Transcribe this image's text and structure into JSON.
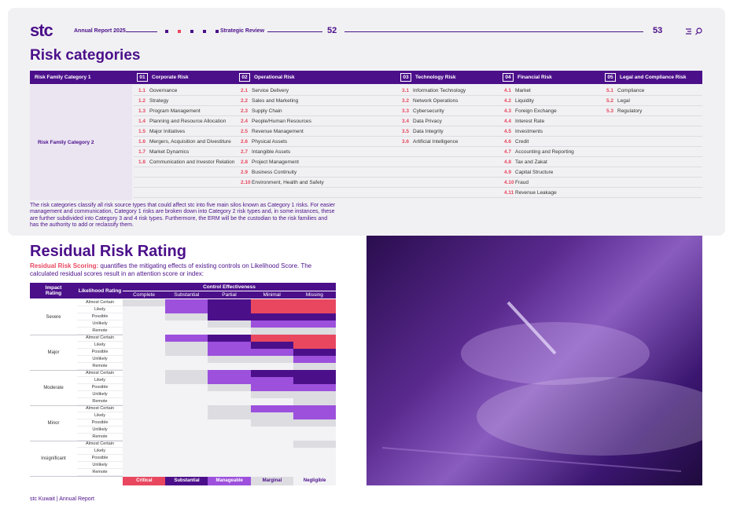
{
  "header": {
    "logo": "stc",
    "report": "Annual Report 2025",
    "section": "Strategic Review",
    "page_left": "52",
    "page_right": "53"
  },
  "risk_categories": {
    "title": "Risk categories",
    "row_label_1": "Risk Family Category 1",
    "row_label_2": "Risk Family Category 2",
    "families": [
      {
        "number": "01",
        "name": "Corporate Risk",
        "items": [
          {
            "code": "1.1",
            "name": "Governance"
          },
          {
            "code": "1.2",
            "name": "Strategy"
          },
          {
            "code": "1.3",
            "name": "Program Management"
          },
          {
            "code": "1.4",
            "name": "Planning and Resource Allocation"
          },
          {
            "code": "1.5",
            "name": "Major Initiatives"
          },
          {
            "code": "1.6",
            "name": "Mergers, Acquisition and Divestiture"
          },
          {
            "code": "1.7",
            "name": "Market Dynamics"
          },
          {
            "code": "1.8",
            "name": "Communication and Investor Relations"
          }
        ]
      },
      {
        "number": "02",
        "name": "Operational Risk",
        "items": [
          {
            "code": "2.1",
            "name": "Service Delivery"
          },
          {
            "code": "2.2",
            "name": "Sales and Marketing"
          },
          {
            "code": "2.3",
            "name": "Supply Chain"
          },
          {
            "code": "2.4",
            "name": "People/Human Resources"
          },
          {
            "code": "2.5",
            "name": "Revenue Management"
          },
          {
            "code": "2.6",
            "name": "Physical Assets"
          },
          {
            "code": "2.7",
            "name": "Intangible Assets"
          },
          {
            "code": "2.8",
            "name": "Project Management"
          },
          {
            "code": "2.9",
            "name": "Business Continuity"
          },
          {
            "code": "2.10",
            "name": "Environment, Health and Safety"
          }
        ]
      },
      {
        "number": "03",
        "name": "Technology Risk",
        "items": [
          {
            "code": "3.1",
            "name": "Information Technology"
          },
          {
            "code": "3.2",
            "name": "Network Operations"
          },
          {
            "code": "3.3",
            "name": "Cybersecurity"
          },
          {
            "code": "3.4",
            "name": "Data Privacy"
          },
          {
            "code": "3.5",
            "name": "Data Integrity"
          },
          {
            "code": "3.6",
            "name": "Artificial Intelligence"
          }
        ]
      },
      {
        "number": "04",
        "name": "Financial Risk",
        "items": [
          {
            "code": "4.1",
            "name": "Market"
          },
          {
            "code": "4.2",
            "name": "Liquidity"
          },
          {
            "code": "4.3",
            "name": "Foreign Exchange"
          },
          {
            "code": "4.4",
            "name": "Interest Rate"
          },
          {
            "code": "4.5",
            "name": "Investments"
          },
          {
            "code": "4.6",
            "name": "Credit"
          },
          {
            "code": "4.7",
            "name": "Accounting and Reporting"
          },
          {
            "code": "4.8",
            "name": "Tax and Zakat"
          },
          {
            "code": "4.9",
            "name": "Capital Structure"
          },
          {
            "code": "4.10",
            "name": "Fraud"
          },
          {
            "code": "4.11",
            "name": "Revenue Leakage"
          }
        ]
      },
      {
        "number": "05",
        "name": "Legal and Compliance Risk",
        "items": [
          {
            "code": "5.1",
            "name": "Compliance"
          },
          {
            "code": "5.2",
            "name": "Legal"
          },
          {
            "code": "5.3",
            "name": "Regulatory"
          }
        ]
      }
    ],
    "description": "The risk categories classify all risk source types that could affect stc into five main silos known as Category 1 risks. For easier management and communication, Category 1 risks are broken down into Category 2 risk types and, in some instances, these are further subdivided into Category 3 and 4 risk types. Furthermore, the ERM will be the custodian to the risk families and has the authority to add or reclassify them."
  },
  "residual": {
    "title": "Residual Risk Rating",
    "intro_label": "Residual Risk Scoring:",
    "intro_text": "quantifies the mitigating effects of existing controls on Likelihood Score. The calculated residual scores result in an attention score or index:",
    "impact_header": "Impact Rating",
    "likelihood_header": "Likelihood Rating",
    "control_header": "Control Effectiveness",
    "controls": [
      "Complete",
      "Substantial",
      "Partial",
      "Minimal",
      "Missing"
    ],
    "likelihoods": [
      "Almost Certain",
      "Likely",
      "Possible",
      "Unlikely",
      "Remote"
    ],
    "impacts": [
      {
        "name": "Severe",
        "cells": [
          [
            3,
            2,
            1,
            0,
            0
          ],
          [
            4,
            2,
            1,
            0,
            0
          ],
          [
            4,
            3,
            1,
            1,
            1
          ],
          [
            4,
            4,
            3,
            2,
            2
          ],
          [
            4,
            4,
            4,
            3,
            3
          ]
        ]
      },
      {
        "name": "Major",
        "cells": [
          [
            4,
            2,
            1,
            0,
            0
          ],
          [
            4,
            3,
            2,
            1,
            0
          ],
          [
            4,
            3,
            2,
            2,
            1
          ],
          [
            4,
            4,
            3,
            3,
            2
          ],
          [
            4,
            4,
            4,
            4,
            3
          ]
        ]
      },
      {
        "name": "Moderate",
        "cells": [
          [
            4,
            3,
            2,
            1,
            1
          ],
          [
            4,
            3,
            2,
            2,
            1
          ],
          [
            4,
            4,
            3,
            2,
            2
          ],
          [
            4,
            4,
            4,
            3,
            3
          ],
          [
            4,
            4,
            4,
            4,
            3
          ]
        ]
      },
      {
        "name": "Minor",
        "cells": [
          [
            4,
            4,
            3,
            2,
            2
          ],
          [
            4,
            4,
            3,
            3,
            2
          ],
          [
            4,
            4,
            4,
            3,
            3
          ],
          [
            4,
            4,
            4,
            4,
            4
          ],
          [
            4,
            4,
            4,
            4,
            4
          ]
        ]
      },
      {
        "name": "Insignificant",
        "cells": [
          [
            4,
            4,
            4,
            4,
            3
          ],
          [
            4,
            4,
            4,
            4,
            4
          ],
          [
            4,
            4,
            4,
            4,
            4
          ],
          [
            4,
            4,
            4,
            4,
            4
          ],
          [
            4,
            4,
            4,
            4,
            4
          ]
        ]
      }
    ],
    "levels": [
      {
        "name": "Critical",
        "color": "#e8475f"
      },
      {
        "name": "Substantial",
        "color": "#4b0f8a"
      },
      {
        "name": "Manageable",
        "color": "#9c50dc"
      },
      {
        "name": "Marginal",
        "color": "#dcdce1"
      },
      {
        "name": "Negligible",
        "color": "#f3f3f6"
      }
    ]
  },
  "footer": "stc Kuwait | Annual Report"
}
